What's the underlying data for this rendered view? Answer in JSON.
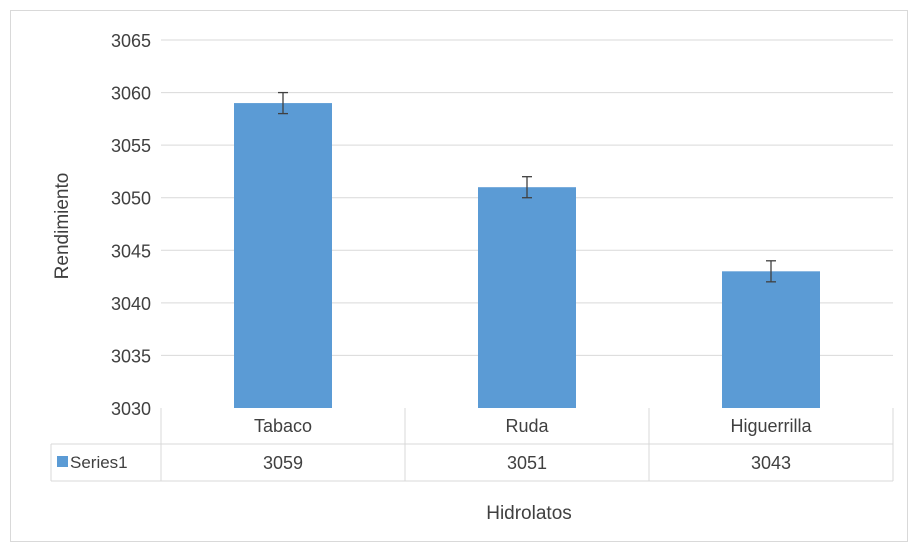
{
  "chart_data": {
    "type": "bar",
    "title": "",
    "xlabel": "Hidrolatos",
    "ylabel": "Rendimiento",
    "ylim": [
      3030,
      3065
    ],
    "yticks": [
      3030,
      3035,
      3040,
      3045,
      3050,
      3055,
      3060,
      3065
    ],
    "grid": true,
    "categories": [
      "Tabaco",
      "Ruda",
      "Higuerrilla"
    ],
    "series": [
      {
        "name": "Series1",
        "values": [
          3059,
          3051,
          3043
        ],
        "error": [
          1,
          1,
          1
        ],
        "color": "#5b9bd5"
      }
    ],
    "data_table": {
      "legend_label": "Series1",
      "values": [
        "3059",
        "3051",
        "3043"
      ]
    }
  }
}
